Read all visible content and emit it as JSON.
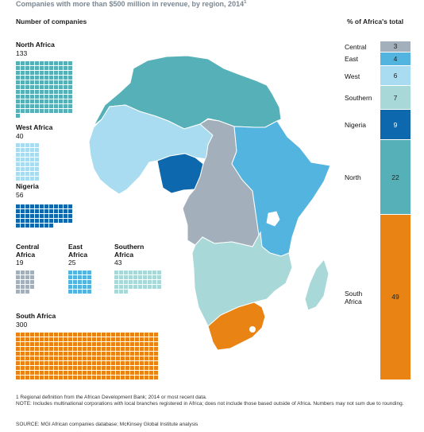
{
  "title": "Companies with more than $500 million in revenue, by region, 2014",
  "title_footnote_mark": "1",
  "left_header": "Number of companies",
  "right_header": "% of Africa's total",
  "colors": {
    "north": "#55b1b7",
    "west": "#a9dcf0",
    "nigeria": "#0e68ad",
    "central": "#a3afba",
    "east": "#54b4e0",
    "southern": "#a8d8d8",
    "south_africa": "#e88314"
  },
  "regions": [
    {
      "key": "north",
      "name": "North Africa",
      "count": "133"
    },
    {
      "key": "west",
      "name": "West Africa",
      "count": "40"
    },
    {
      "key": "nigeria",
      "name": "Nigeria",
      "count": "56"
    },
    {
      "key": "central",
      "name": "Central Africa",
      "count": "19"
    },
    {
      "key": "east",
      "name": "East Africa",
      "count": "25"
    },
    {
      "key": "southern",
      "name": "Southern Africa",
      "count": "43"
    },
    {
      "key": "south_africa",
      "name": "South Africa",
      "count": "300"
    }
  ],
  "chart_data": {
    "type": "stacked-bar",
    "title": "% of Africa's total",
    "categories": [
      "Central",
      "East",
      "West",
      "Southern",
      "Nigeria",
      "North",
      "South Africa"
    ],
    "values": [
      3,
      4,
      6,
      7,
      9,
      22,
      49
    ]
  },
  "footnotes": {
    "note1": "1  Regional definition from the African Development Bank; 2014 or most recent data.",
    "note2": "NOTE: Includes multinational corporations with local branches registered in Africa; does not include those based outside of Africa. Numbers may not sum due to rounding.",
    "source": "SOURCE: MGI African companies database; McKinsey Global Institute analysis"
  }
}
